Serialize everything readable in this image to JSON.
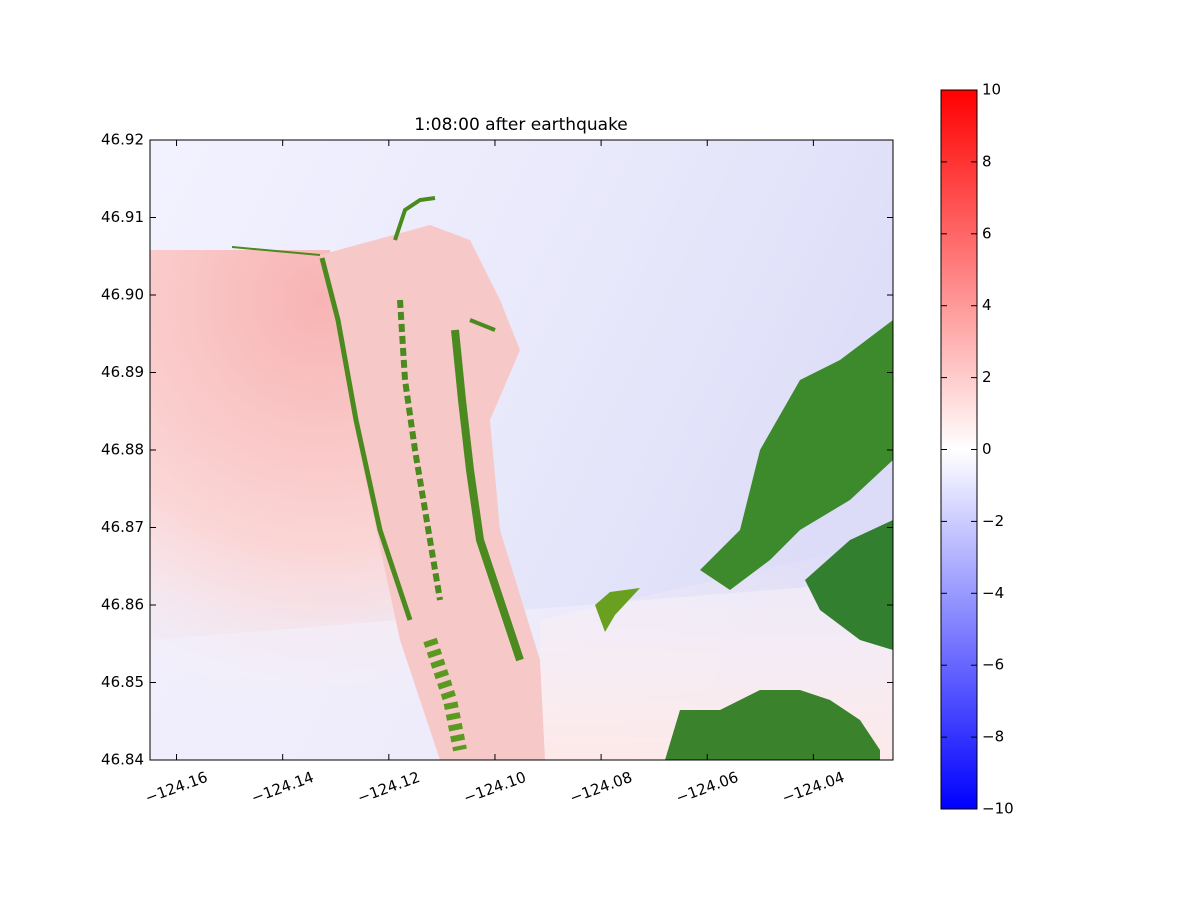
{
  "chart_data": {
    "type": "heatmap",
    "title": "1:08:00 after earthquake",
    "xlim": [
      -124.165,
      -124.025
    ],
    "xticks": [
      {
        "value": -124.16,
        "label": "−124.16"
      },
      {
        "value": -124.14,
        "label": "−124.14"
      },
      {
        "value": -124.12,
        "label": "−124.12"
      },
      {
        "value": -124.1,
        "label": "−124.10"
      },
      {
        "value": -124.08,
        "label": "−124.08"
      },
      {
        "value": -124.06,
        "label": "−124.06"
      },
      {
        "value": -124.04,
        "label": "−124.04"
      }
    ],
    "ylim": [
      46.84,
      46.92
    ],
    "yticks": [
      46.84,
      46.85,
      46.86,
      46.87,
      46.88,
      46.89,
      {
        "value": 46.9,
        "label": "46.90"
      },
      46.91,
      46.92
    ],
    "colorbar": {
      "lim": [
        -10,
        10
      ],
      "colors": [
        "#0000ff",
        "#ffffff",
        "#ff0000"
      ],
      "ticks": [
        {
          "value": -10,
          "label": "−10"
        },
        {
          "value": -8,
          "label": "−8"
        },
        {
          "value": -6,
          "label": "−6"
        },
        {
          "value": -4,
          "label": "−4"
        },
        {
          "value": -2,
          "label": "−2"
        },
        0,
        2,
        4,
        6,
        8,
        10
      ]
    }
  }
}
